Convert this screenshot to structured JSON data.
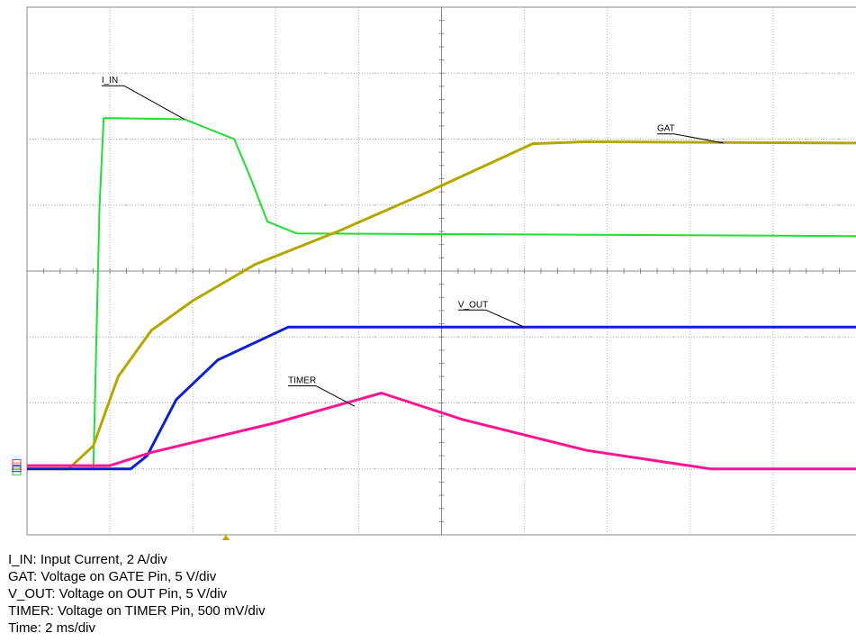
{
  "chart_data": {
    "type": "line",
    "x_unit": "ms",
    "x_range": [
      0,
      20
    ],
    "y_unit": "div",
    "y_range": [
      -4,
      4
    ],
    "grid": true,
    "series": [
      {
        "name": "I_IN",
        "color": "#22dd33",
        "points": [
          [
            0,
            -3
          ],
          [
            1.45,
            -3
          ],
          [
            1.6,
            -3
          ],
          [
            1.75,
            1
          ],
          [
            1.85,
            2.32
          ],
          [
            3.8,
            2.3
          ],
          [
            5.0,
            2.0
          ],
          [
            5.4,
            1.4
          ],
          [
            5.8,
            0.75
          ],
          [
            6.5,
            0.57
          ],
          [
            20,
            0.53
          ]
        ]
      },
      {
        "name": "GAT",
        "color": "#b5a600",
        "points": [
          [
            0,
            -3
          ],
          [
            1.0,
            -3
          ],
          [
            1.6,
            -2.65
          ],
          [
            2.2,
            -1.6
          ],
          [
            3.0,
            -0.9
          ],
          [
            4.0,
            -0.45
          ],
          [
            5.5,
            0.1
          ],
          [
            7.5,
            0.6
          ],
          [
            9.5,
            1.15
          ],
          [
            12.2,
            1.93
          ],
          [
            13.5,
            1.96
          ],
          [
            20,
            1.94
          ]
        ]
      },
      {
        "name": "V_OUT",
        "color": "#1020cc",
        "points": [
          [
            0,
            -3
          ],
          [
            2.5,
            -3
          ],
          [
            2.9,
            -2.8
          ],
          [
            3.6,
            -1.95
          ],
          [
            4.6,
            -1.35
          ],
          [
            6.3,
            -0.85
          ],
          [
            6.8,
            -0.85
          ],
          [
            20,
            -0.85
          ]
        ]
      },
      {
        "name": "TIMER",
        "color": "#ff1493",
        "points": [
          [
            0,
            -2.95
          ],
          [
            2.0,
            -2.95
          ],
          [
            3.0,
            -2.75
          ],
          [
            6.0,
            -2.3
          ],
          [
            8.55,
            -1.85
          ],
          [
            10.5,
            -2.25
          ],
          [
            13.5,
            -2.72
          ],
          [
            16.5,
            -3.0
          ],
          [
            20,
            -3.0
          ]
        ]
      }
    ],
    "annotations": [
      "I_IN",
      "GAT",
      "V_OUT",
      "TIMER"
    ]
  },
  "legend_lines": [
    "I_IN: Input Current, 2 A/div",
    "GAT: Voltage on GATE Pin, 5 V/div",
    "V_OUT: Voltage on OUT Pin, 5 V/div",
    "TIMER: Voltage on TIMER Pin, 500 mV/div",
    "Time: 2 ms/div"
  ]
}
